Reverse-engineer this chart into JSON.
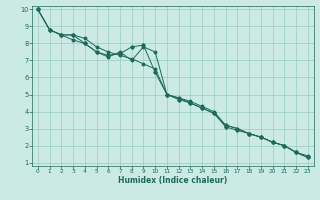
{
  "xlabel": "Humidex (Indice chaleur)",
  "background_color": "#cceae4",
  "grid_color": "#99ccbf",
  "line_color": "#1a6b5a",
  "xlim": [
    -0.5,
    23.5
  ],
  "ylim": [
    0.8,
    10.2
  ],
  "xticks": [
    0,
    1,
    2,
    3,
    4,
    5,
    6,
    7,
    8,
    9,
    10,
    11,
    12,
    13,
    14,
    15,
    16,
    17,
    18,
    19,
    20,
    21,
    22,
    23
  ],
  "yticks": [
    1,
    2,
    3,
    4,
    5,
    6,
    7,
    8,
    9,
    10
  ],
  "series1_x": [
    0,
    1,
    2,
    3,
    4,
    5,
    6,
    7,
    8,
    9,
    10,
    11,
    12,
    13,
    14,
    15,
    16,
    17,
    18,
    19,
    20,
    21,
    22,
    23
  ],
  "series1_y": [
    10,
    8.8,
    8.5,
    8.2,
    8.0,
    7.5,
    7.2,
    7.5,
    7.0,
    7.8,
    7.5,
    5.0,
    4.8,
    4.6,
    4.3,
    4.0,
    3.2,
    3.0,
    2.7,
    2.5,
    2.2,
    2.0,
    1.6,
    1.4
  ],
  "series2_x": [
    0,
    1,
    2,
    3,
    4,
    5,
    6,
    7,
    8,
    9,
    10,
    11,
    12,
    13,
    14,
    15,
    16,
    17,
    18,
    19,
    20,
    21,
    22,
    23
  ],
  "series2_y": [
    10,
    8.8,
    8.5,
    8.5,
    8.3,
    7.8,
    7.5,
    7.3,
    7.1,
    6.8,
    6.5,
    5.0,
    4.8,
    4.5,
    4.2,
    3.9,
    3.2,
    3.0,
    2.7,
    2.5,
    2.2,
    2.0,
    1.6,
    1.3
  ],
  "series3_x": [
    0,
    1,
    2,
    3,
    4,
    5,
    6,
    7,
    8,
    9,
    10,
    11,
    12,
    13,
    14,
    15,
    16,
    17,
    18,
    19,
    20,
    21,
    22,
    23
  ],
  "series3_y": [
    10,
    8.8,
    8.5,
    8.5,
    8.0,
    7.5,
    7.3,
    7.4,
    7.8,
    7.9,
    6.3,
    5.0,
    4.7,
    4.5,
    4.2,
    3.9,
    3.1,
    2.9,
    2.7,
    2.5,
    2.2,
    2.0,
    1.6,
    1.3
  ]
}
